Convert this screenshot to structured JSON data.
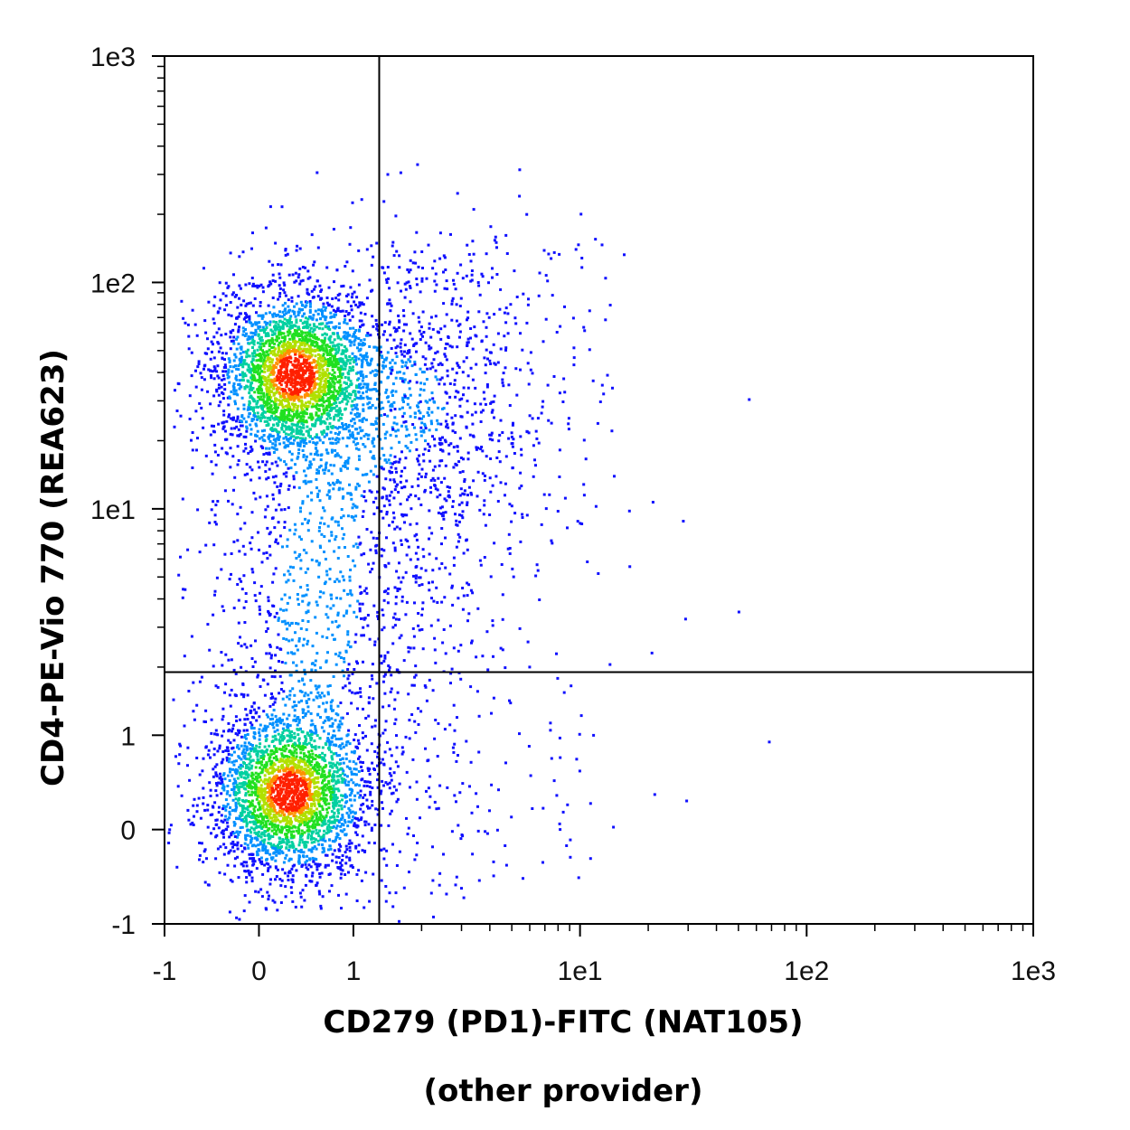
{
  "chart_data": {
    "type": "scatter",
    "style": "flow-cytometry density dot plot (pseudocolor)",
    "scale": "biexponential",
    "xlabel": "CD279 (PD1)-FITC (NAT105)",
    "xlabel_sub": "(other provider)",
    "ylabel": "CD4-PE-Vio 770 (REA623)",
    "xlim": [
      -1,
      1000
    ],
    "ylim": [
      -1,
      1000
    ],
    "x_ticks": [
      {
        "value": -1,
        "label": "-1"
      },
      {
        "value": 0,
        "label": "0"
      },
      {
        "value": 1,
        "label": "1"
      },
      {
        "value": 10,
        "label": "1e1"
      },
      {
        "value": 100,
        "label": "1e2"
      },
      {
        "value": 1000,
        "label": "1e3"
      }
    ],
    "y_ticks": [
      {
        "value": -1,
        "label": "-1"
      },
      {
        "value": 0,
        "label": "0"
      },
      {
        "value": 1,
        "label": "1"
      },
      {
        "value": 10,
        "label": "1e1"
      },
      {
        "value": 100,
        "label": "1e2"
      },
      {
        "value": 1000,
        "label": "1e3"
      }
    ],
    "quadrant_gate": {
      "x": 1.3,
      "y": 1.9
    },
    "populations": [
      {
        "x_center": 0.35,
        "y_center": 40,
        "density": "high"
      },
      {
        "x_center": 0.3,
        "y_center": 0.4,
        "density": "high"
      },
      {
        "x_center": 1.8,
        "y_center": 30,
        "density": "low"
      },
      {
        "x_center": 0.6,
        "y_center": 4,
        "density": "low"
      }
    ],
    "density_colors": [
      "#1010ff",
      "#0090ff",
      "#00d0a0",
      "#20e020",
      "#b0e000",
      "#ff9000",
      "#ff2000"
    ],
    "grid": false,
    "legend": "none"
  }
}
